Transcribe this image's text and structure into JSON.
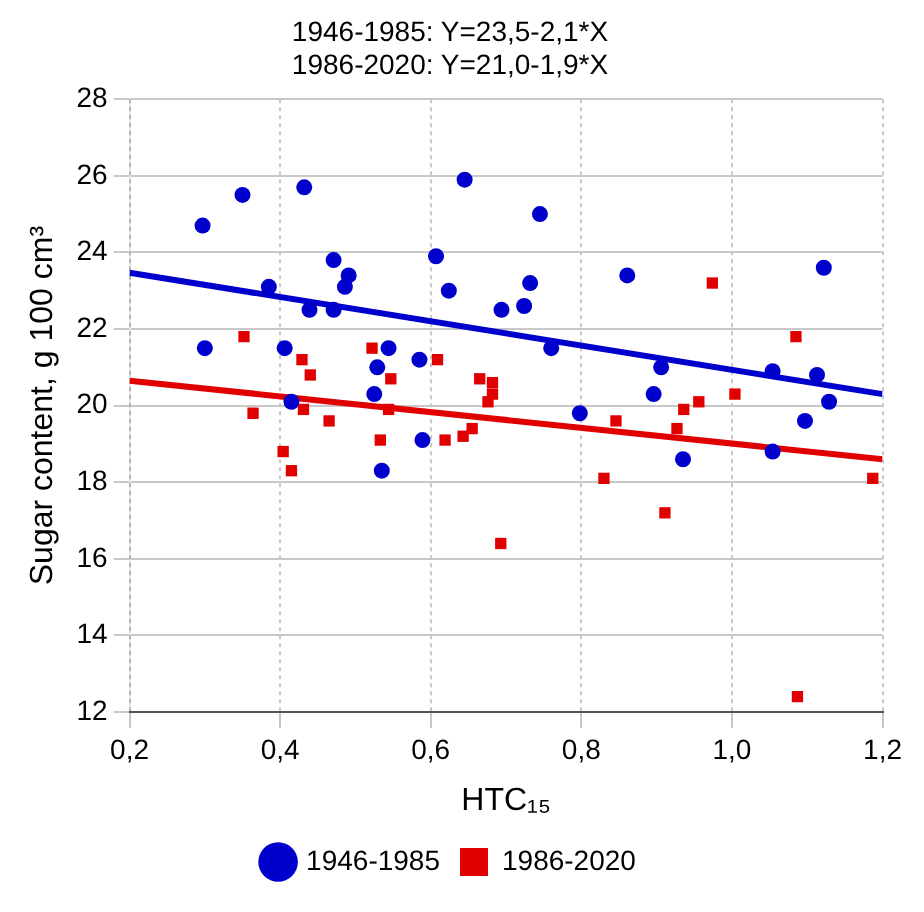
{
  "chart_data": {
    "type": "scatter",
    "title": "1946-1985: Y=23,5-2,1*X",
    "subtitle": "1986-2020: Y=21,0-1,9*X",
    "xlabel": "HTC₁₅",
    "ylabel": "Sugar content, g 100 cm³",
    "xlim": [
      0.2,
      1.2
    ],
    "xticks": [
      {
        "value": 0.2,
        "label": "0,2"
      },
      {
        "value": 0.4,
        "label": "0,4"
      },
      {
        "value": 0.6,
        "label": "0,6"
      },
      {
        "value": 0.8,
        "label": "0,8"
      },
      {
        "value": 1.0,
        "label": "1,0"
      },
      {
        "value": 1.2,
        "label": "1,2"
      }
    ],
    "ylim": [
      12,
      28
    ],
    "yticks": [
      12,
      14,
      16,
      18,
      20,
      22,
      24,
      26,
      28
    ],
    "grid": true,
    "legend": "bottom",
    "series": [
      {
        "name": "1946-1985",
        "color": "#0000cc",
        "marker": "circle",
        "x": [
          0.297,
          0.35,
          0.432,
          0.3,
          0.385,
          0.406,
          0.415,
          0.439,
          0.471,
          0.491,
          0.486,
          0.471,
          0.529,
          0.544,
          0.525,
          0.535,
          0.585,
          0.589,
          0.607,
          0.624,
          0.645,
          0.694,
          0.724,
          0.732,
          0.745,
          0.76,
          0.798,
          0.861,
          0.896,
          0.906,
          0.935,
          1.054,
          1.054,
          1.097,
          1.113,
          1.122,
          1.129
        ],
        "values": [
          24.7,
          25.5,
          25.7,
          21.5,
          23.1,
          21.5,
          20.1,
          22.5,
          23.8,
          23.4,
          23.1,
          22.5,
          21.0,
          21.5,
          20.3,
          18.3,
          21.2,
          19.1,
          23.9,
          23.0,
          25.9,
          22.5,
          22.6,
          23.2,
          25.0,
          21.5,
          19.8,
          23.4,
          20.3,
          21.0,
          18.6,
          20.9,
          18.8,
          19.6,
          20.8,
          23.6,
          20.1
        ]
      },
      {
        "name": "1986-2020",
        "color": "#e00000",
        "marker": "square",
        "x": [
          0.352,
          0.364,
          0.404,
          0.415,
          0.429,
          0.44,
          0.431,
          0.465,
          0.522,
          0.547,
          0.544,
          0.533,
          0.609,
          0.619,
          0.643,
          0.655,
          0.665,
          0.682,
          0.682,
          0.676,
          0.693,
          0.846,
          0.83,
          0.911,
          0.927,
          0.936,
          0.956,
          0.974,
          1.004,
          1.085,
          1.087,
          1.187
        ],
        "values": [
          21.8,
          19.8,
          18.8,
          18.3,
          21.2,
          20.8,
          19.9,
          19.6,
          21.5,
          20.7,
          19.9,
          19.1,
          21.2,
          19.1,
          19.2,
          19.4,
          20.7,
          20.6,
          20.3,
          20.1,
          16.4,
          19.6,
          18.1,
          17.2,
          19.4,
          19.9,
          20.1,
          23.2,
          20.3,
          21.8,
          12.4,
          18.1
        ]
      },
      {
        "type": "line",
        "color": "#0000cc",
        "marker": "none",
        "x": [
          0.2,
          1.2
        ],
        "values": [
          23.47,
          20.3
        ]
      },
      {
        "type": "line",
        "color": "#e00000",
        "marker": "none",
        "x": [
          0.2,
          1.2
        ],
        "values": [
          20.65,
          18.6
        ]
      }
    ]
  }
}
